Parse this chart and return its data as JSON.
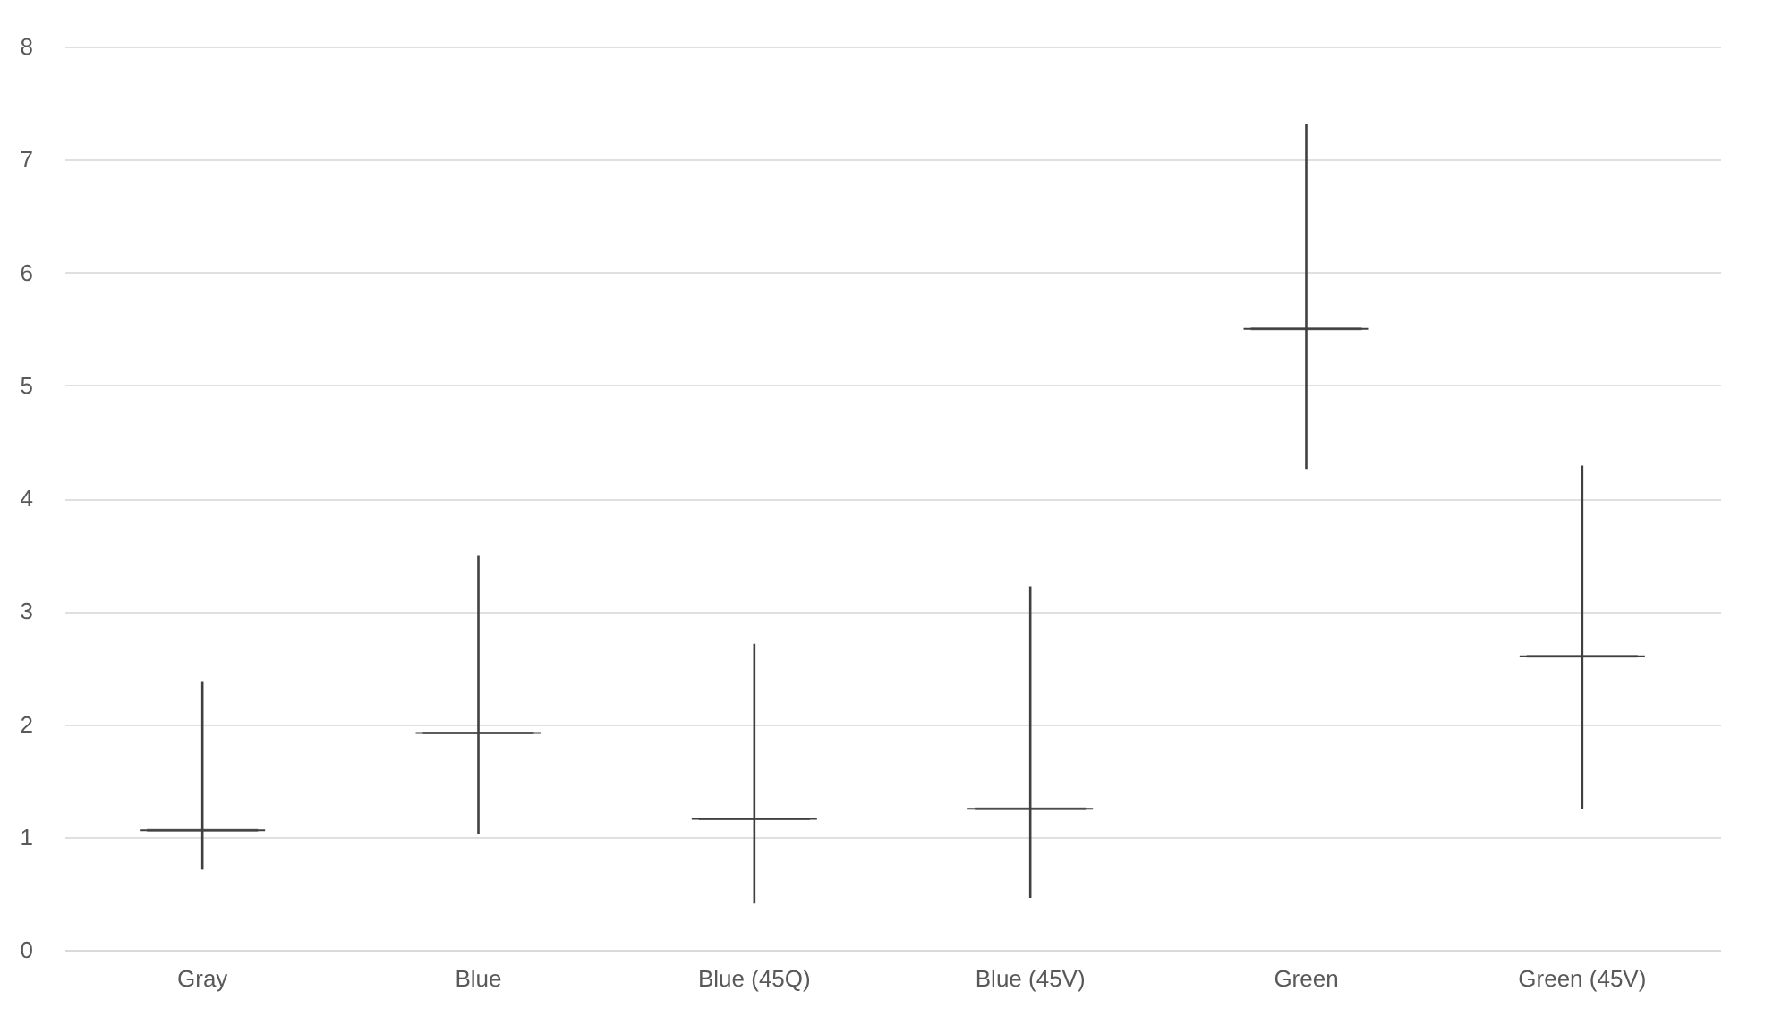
{
  "chart_data": {
    "type": "box",
    "categories": [
      "Gray",
      "Blue",
      "Blue (45Q)",
      "Blue (45V)",
      "Green",
      "Green (45V)"
    ],
    "boxes": [
      {
        "low": 0.71,
        "q1": 1.06,
        "median": 1.06,
        "q3": 1.06,
        "high": 2.38
      },
      {
        "low": 1.03,
        "q1": 1.92,
        "median": 1.92,
        "q3": 1.92,
        "high": 3.49
      },
      {
        "low": 0.41,
        "q1": 1.16,
        "median": 1.16,
        "q3": 1.16,
        "high": 2.71
      },
      {
        "low": 0.46,
        "q1": 1.25,
        "median": 1.25,
        "q3": 1.25,
        "high": 3.22
      },
      {
        "low": 4.26,
        "q1": 5.5,
        "median": 5.5,
        "q3": 5.5,
        "high": 7.31
      },
      {
        "low": 1.25,
        "q1": 2.6,
        "median": 2.6,
        "q3": 2.6,
        "high": 4.29
      }
    ],
    "color": "#404040",
    "ylim": [
      0,
      8
    ],
    "yticks": [
      0,
      1,
      2,
      3,
      4,
      5,
      6,
      7,
      8
    ],
    "grid": "y"
  }
}
